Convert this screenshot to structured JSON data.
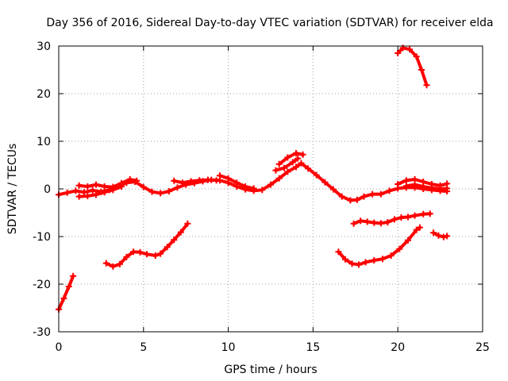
{
  "chart_data": {
    "type": "line",
    "title": "Day 356 of 2016, Sidereal Day-to-day VTEC variation (SDTVAR) for receiver elda",
    "xlabel": "GPS time / hours",
    "ylabel": "SDTVAR / TECUs",
    "xlim": [
      0,
      25
    ],
    "ylim": [
      -30,
      30
    ],
    "xticks": [
      0,
      5,
      10,
      15,
      20,
      25
    ],
    "yticks": [
      -30,
      -20,
      -10,
      0,
      10,
      20,
      30
    ],
    "grid": true,
    "series_color": "#ff0000",
    "series": [
      {
        "name": "trace-1",
        "points": [
          [
            0.0,
            -25.3
          ],
          [
            0.3,
            -23.0
          ],
          [
            0.6,
            -20.5
          ],
          [
            0.85,
            -18.3
          ]
        ]
      },
      {
        "name": "trace-2",
        "points": [
          [
            0.0,
            -1.2
          ],
          [
            0.5,
            -0.8
          ],
          [
            1.0,
            -0.4
          ],
          [
            1.5,
            -0.7
          ],
          [
            2.0,
            -0.3
          ],
          [
            2.5,
            -0.6
          ],
          [
            3.0,
            -0.2
          ],
          [
            3.5,
            0.5
          ],
          [
            4.0,
            1.3
          ],
          [
            4.5,
            1.5
          ],
          [
            5.0,
            0.4
          ],
          [
            5.5,
            -0.6
          ],
          [
            6.0,
            -0.9
          ],
          [
            6.5,
            -0.5
          ],
          [
            7.0,
            0.3
          ],
          [
            7.5,
            0.9
          ],
          [
            8.0,
            1.2
          ],
          [
            8.5,
            1.6
          ],
          [
            9.0,
            1.9
          ],
          [
            9.5,
            1.8
          ],
          [
            10.0,
            1.3
          ],
          [
            10.5,
            0.5
          ],
          [
            11.0,
            -0.1
          ],
          [
            11.5,
            -0.4
          ],
          [
            12.0,
            -0.2
          ],
          [
            12.5,
            0.9
          ],
          [
            13.0,
            2.2
          ],
          [
            13.5,
            3.6
          ],
          [
            14.0,
            4.6
          ],
          [
            14.3,
            5.4
          ],
          [
            14.7,
            4.3
          ],
          [
            15.2,
            2.9
          ],
          [
            15.7,
            1.4
          ],
          [
            16.2,
            -0.1
          ],
          [
            16.7,
            -1.6
          ],
          [
            17.2,
            -2.4
          ],
          [
            17.6,
            -2.3
          ],
          [
            18.0,
            -1.6
          ],
          [
            18.5,
            -1.1
          ],
          [
            19.0,
            -1.1
          ],
          [
            19.5,
            -0.4
          ],
          [
            20.0,
            0.1
          ],
          [
            20.5,
            0.3
          ],
          [
            21.0,
            0.3
          ],
          [
            21.5,
            0.0
          ],
          [
            22.0,
            -0.2
          ],
          [
            22.5,
            -0.4
          ],
          [
            22.9,
            -0.5
          ]
        ]
      },
      {
        "name": "trace-3",
        "points": [
          [
            1.2,
            0.7
          ],
          [
            1.7,
            0.5
          ],
          [
            2.2,
            0.9
          ],
          [
            2.7,
            0.5
          ],
          [
            3.2,
            0.4
          ],
          [
            3.7,
            1.2
          ],
          [
            4.2,
            2.0
          ],
          [
            4.6,
            1.7
          ]
        ]
      },
      {
        "name": "trace-4",
        "points": [
          [
            1.2,
            -1.6
          ],
          [
            1.7,
            -1.5
          ],
          [
            2.2,
            -1.2
          ],
          [
            2.7,
            -0.7
          ],
          [
            3.2,
            -0.2
          ],
          [
            3.7,
            0.5
          ]
        ]
      },
      {
        "name": "trace-5",
        "points": [
          [
            6.8,
            1.7
          ],
          [
            7.3,
            1.3
          ],
          [
            7.8,
            1.6
          ],
          [
            8.3,
            1.8
          ],
          [
            8.8,
            1.9
          ],
          [
            9.3,
            1.8
          ]
        ]
      },
      {
        "name": "trace-6",
        "points": [
          [
            9.5,
            2.8
          ],
          [
            10.0,
            2.2
          ],
          [
            10.5,
            1.3
          ],
          [
            11.0,
            0.5
          ],
          [
            11.5,
            0.1
          ]
        ]
      },
      {
        "name": "trace-7",
        "points": [
          [
            13.0,
            5.2
          ],
          [
            13.5,
            6.6
          ],
          [
            14.0,
            7.5
          ],
          [
            14.4,
            7.2
          ]
        ]
      },
      {
        "name": "trace-8",
        "points": [
          [
            12.8,
            3.9
          ],
          [
            13.3,
            4.4
          ],
          [
            13.8,
            5.6
          ],
          [
            14.1,
            6.4
          ]
        ]
      },
      {
        "name": "trace-9",
        "points": [
          [
            20.0,
            1.0
          ],
          [
            20.5,
            1.8
          ],
          [
            21.0,
            2.0
          ],
          [
            21.5,
            1.5
          ],
          [
            22.0,
            1.0
          ],
          [
            22.5,
            0.7
          ],
          [
            22.9,
            1.1
          ]
        ]
      },
      {
        "name": "trace-10",
        "points": [
          [
            20.5,
            0.6
          ],
          [
            21.0,
            0.9
          ],
          [
            21.5,
            0.5
          ],
          [
            22.0,
            0.2
          ],
          [
            22.5,
            0.0
          ],
          [
            22.9,
            0.1
          ]
        ]
      },
      {
        "name": "trace-11",
        "points": [
          [
            20.0,
            28.5
          ],
          [
            20.3,
            29.6
          ],
          [
            20.7,
            29.3
          ],
          [
            21.1,
            27.8
          ],
          [
            21.4,
            25.0
          ],
          [
            21.7,
            21.8
          ]
        ]
      },
      {
        "name": "trace-12",
        "points": [
          [
            2.8,
            -15.6
          ],
          [
            3.2,
            -16.3
          ],
          [
            3.6,
            -15.8
          ],
          [
            4.0,
            -14.3
          ],
          [
            4.4,
            -13.2
          ],
          [
            4.8,
            -13.3
          ],
          [
            5.2,
            -13.7
          ],
          [
            5.7,
            -14.0
          ],
          [
            6.0,
            -13.6
          ],
          [
            6.4,
            -12.2
          ],
          [
            6.8,
            -10.7
          ],
          [
            7.2,
            -9.1
          ],
          [
            7.6,
            -7.3
          ]
        ]
      },
      {
        "name": "trace-13",
        "points": [
          [
            16.5,
            -13.2
          ],
          [
            16.9,
            -14.8
          ],
          [
            17.3,
            -15.7
          ],
          [
            17.7,
            -15.9
          ],
          [
            18.1,
            -15.4
          ],
          [
            18.6,
            -15.0
          ],
          [
            19.1,
            -14.7
          ],
          [
            19.6,
            -14.0
          ],
          [
            20.1,
            -12.6
          ],
          [
            20.6,
            -10.8
          ],
          [
            21.1,
            -8.6
          ],
          [
            21.3,
            -8.1
          ]
        ]
      },
      {
        "name": "trace-14",
        "points": [
          [
            17.4,
            -7.3
          ],
          [
            17.8,
            -6.7
          ],
          [
            18.2,
            -6.9
          ],
          [
            18.6,
            -7.1
          ],
          [
            19.0,
            -7.2
          ],
          [
            19.4,
            -7.0
          ],
          [
            19.8,
            -6.4
          ],
          [
            20.2,
            -6.0
          ],
          [
            20.6,
            -5.9
          ],
          [
            21.0,
            -5.6
          ],
          [
            21.5,
            -5.3
          ],
          [
            21.9,
            -5.2
          ]
        ]
      },
      {
        "name": "trace-15",
        "points": [
          [
            22.1,
            -9.2
          ],
          [
            22.4,
            -9.8
          ],
          [
            22.7,
            -10.1
          ],
          [
            22.9,
            -9.9
          ]
        ]
      }
    ]
  }
}
